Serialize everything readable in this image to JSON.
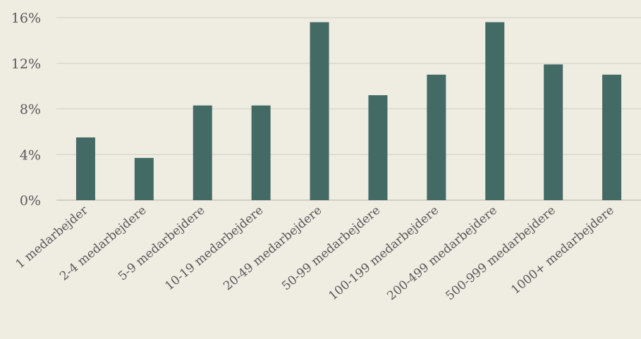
{
  "chart_data": {
    "type": "bar",
    "title": "",
    "xlabel": "",
    "ylabel": "",
    "categories": [
      "1 medarbejder",
      "2-4 medarbejdere",
      "5-9 medarbejdere",
      "10-19 medarbejdere",
      "20-49 medarbejdere",
      "50-99 medarbejdere",
      "100-199 medarbejdere",
      "200-499 medarbejdere",
      "500-999 medarbejdere",
      "1000+ medarbejdere"
    ],
    "values": [
      5.5,
      3.7,
      8.3,
      8.3,
      15.6,
      9.2,
      11.0,
      15.6,
      11.9,
      11.0
    ],
    "ylim": [
      0,
      16
    ],
    "yticks": [
      0,
      4,
      8,
      12,
      16
    ],
    "ytick_labels": [
      "0%",
      "4%",
      "8%",
      "12%",
      "16%"
    ],
    "grid": true,
    "legend": "none",
    "bar_color": "#446a66"
  }
}
